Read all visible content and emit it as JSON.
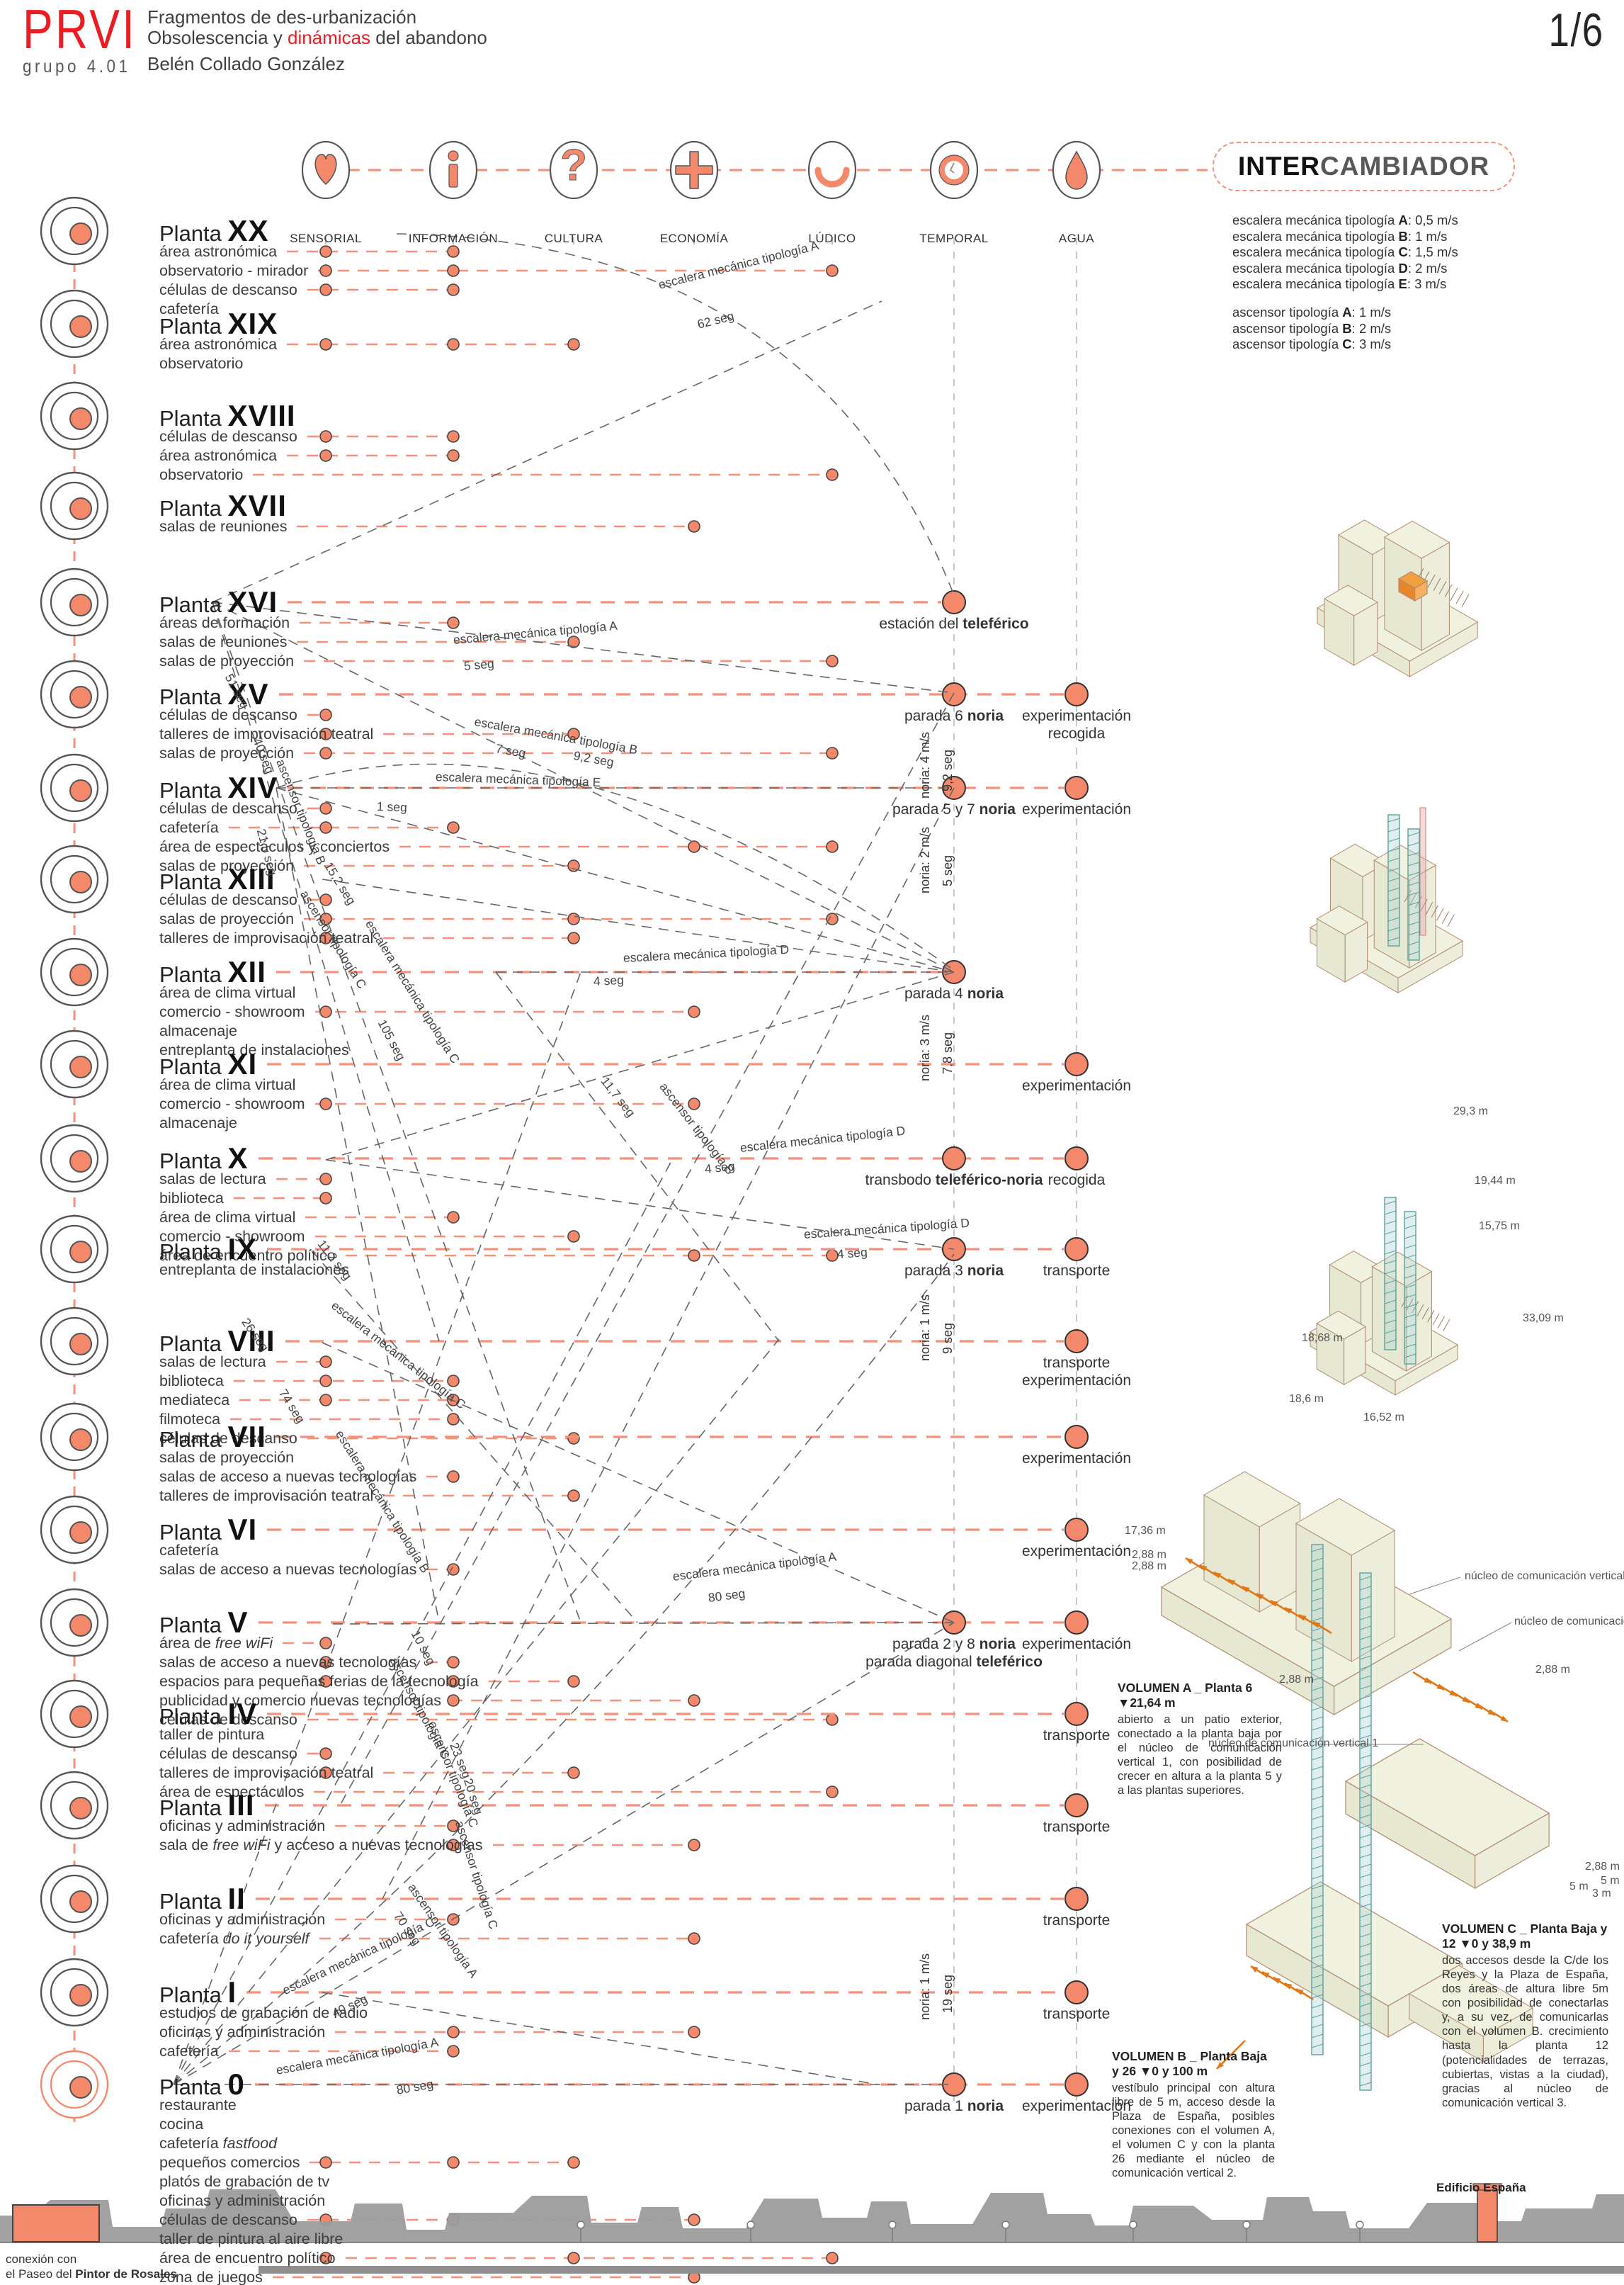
{
  "header": {
    "logo": "PRVI",
    "group": "grupo 4.01",
    "title1": "Fragmentos de des-urbanización",
    "title2_a": "Obsolescencia y ",
    "title2_b": "dinámicas",
    "title2_c": " del abandono",
    "author": "Belén Collado González",
    "page": "1/6"
  },
  "colors": {
    "accent": "#f4886a",
    "accent_line": "#f5917a",
    "red": "#ec1c24",
    "line_gray": "#666666",
    "col_gray": "#c2c2c2",
    "skyline": "#9c9c9c",
    "teal": "#5fa0a0",
    "orange": "#e07818",
    "axon_top": "#f0f1de",
    "axon_l": "#e7e8d2",
    "axon_r": "#ecedda",
    "axon_stroke": "#b08a6e"
  },
  "categories": [
    {
      "label": "SENSORIAL",
      "icon": "heart-icon"
    },
    {
      "label": "INFORMACIÓN",
      "icon": "info-icon"
    },
    {
      "label": "CULTURA",
      "icon": "question-icon"
    },
    {
      "label": "ECONOMÍA",
      "icon": "plus-icon"
    },
    {
      "label": "LÚDICO",
      "icon": "smile-icon"
    },
    {
      "label": "TEMPORAL",
      "icon": "clock-icon"
    },
    {
      "label": "AGUA",
      "icon": "drop-icon"
    }
  ],
  "intercambiador": {
    "title_bold": "INTER",
    "title_rest": "CAMBIADOR",
    "escaleras": [
      "escalera mecánica tipología **A**: 0,5 m/s",
      "escalera mecánica tipología **B**: 1 m/s",
      "escalera mecánica tipología **C**: 1,5 m/s",
      "escalera mecánica tipología **D**: 2 m/s",
      "escalera mecánica tipología **E**: 3 m/s"
    ],
    "ascensores": [
      "ascensor tipología **A**: 1 m/s",
      "ascensor tipología **B**: 2 m/s",
      "ascensor tipología **C**: 3 m/s"
    ]
  },
  "floors": [
    {
      "num": "XX",
      "functions": [
        "área astronómica",
        "observatorio - mirador",
        "células de descanso",
        "cafetería"
      ],
      "dots": [
        [
          0,
          [
            0,
            1,
            2
          ]
        ],
        [
          1,
          [
            0,
            1,
            2
          ]
        ],
        [
          4,
          [
            1
          ]
        ]
      ],
      "right": []
    },
    {
      "num": "XIX",
      "functions": [
        "área astronómica",
        "observatorio"
      ],
      "dots": [
        [
          0,
          [
            0
          ]
        ],
        [
          1,
          [
            0
          ]
        ],
        [
          2,
          [
            0
          ]
        ]
      ],
      "right": []
    },
    {
      "num": "XVIII",
      "functions": [
        "células de descanso",
        "área astronómica",
        "observatorio"
      ],
      "dots": [
        [
          0,
          [
            0,
            1
          ]
        ],
        [
          1,
          [
            0,
            1
          ]
        ],
        [
          4,
          [
            2
          ]
        ]
      ],
      "right": []
    },
    {
      "num": "XVII",
      "functions": [
        "salas de reuniones"
      ],
      "dots": [
        [
          3,
          [
            0
          ]
        ]
      ],
      "right": []
    },
    {
      "num": "XVI",
      "functions": [
        "áreas de formación",
        "salas de reuniones",
        "salas de proyección"
      ],
      "dots": [
        [
          1,
          [
            0
          ]
        ],
        [
          2,
          [
            1
          ]
        ],
        [
          4,
          [
            2
          ]
        ]
      ],
      "right": [
        {
          "col": 5,
          "lines": [
            "estación del **teleférico**"
          ]
        }
      ]
    },
    {
      "num": "XV",
      "functions": [
        "células de descanso",
        "talleres de improvisación teatral",
        "salas de proyección"
      ],
      "dots": [
        [
          0,
          [
            0,
            1,
            2
          ]
        ],
        [
          2,
          [
            1
          ]
        ],
        [
          4,
          [
            2
          ]
        ]
      ],
      "right": [
        {
          "col": 5,
          "lines": [
            "parada 6 **noria**"
          ]
        },
        {
          "col": 6,
          "lines": [
            "experimentación",
            "recogida"
          ]
        }
      ]
    },
    {
      "num": "XIV",
      "functions": [
        "células de descanso",
        "cafetería",
        "área de espectáculos y conciertos",
        "salas de proyección"
      ],
      "dots": [
        [
          0,
          [
            0,
            1
          ]
        ],
        [
          1,
          [
            1
          ]
        ],
        [
          2,
          [
            3
          ]
        ],
        [
          3,
          [
            2
          ]
        ],
        [
          4,
          [
            2
          ]
        ]
      ],
      "right": [
        {
          "col": 5,
          "lines": [
            "parada 5 y 7 **noria**"
          ]
        },
        {
          "col": 6,
          "lines": [
            "experimentación"
          ]
        }
      ]
    },
    {
      "num": "XIII",
      "functions": [
        "células de descanso",
        "salas de proyección",
        "talleres de improvisación teatral"
      ],
      "dots": [
        [
          0,
          [
            0,
            1,
            2
          ]
        ],
        [
          2,
          [
            1,
            2
          ]
        ],
        [
          4,
          [
            1
          ]
        ]
      ],
      "right": []
    },
    {
      "num": "XII",
      "functions": [
        "área de clima virtual",
        "comercio - showroom",
        "almacenaje",
        "entreplanta de instalaciones"
      ],
      "dots": [
        [
          0,
          [
            1
          ]
        ],
        [
          3,
          [
            1
          ]
        ]
      ],
      "right": [
        {
          "col": 5,
          "lines": [
            "parada 4 **noria**"
          ]
        }
      ]
    },
    {
      "num": "XI",
      "functions": [
        "área de clima virtual",
        "comercio - showroom",
        "almacenaje"
      ],
      "dots": [
        [
          0,
          [
            1
          ]
        ],
        [
          3,
          [
            1
          ]
        ]
      ],
      "right": [
        {
          "col": 6,
          "lines": [
            "experimentación"
          ]
        }
      ]
    },
    {
      "num": "X",
      "functions": [
        "salas de lectura",
        "biblioteca",
        "área de clima virtual",
        "comercio - showroom",
        "área de encuentro político"
      ],
      "dots": [
        [
          0,
          [
            0,
            1
          ]
        ],
        [
          1,
          [
            2
          ]
        ],
        [
          2,
          [
            3
          ]
        ],
        [
          3,
          [
            4
          ]
        ],
        [
          4,
          [
            4
          ]
        ]
      ],
      "right": [
        {
          "col": 5,
          "lines": [
            "transbodo **teleférico-noria**"
          ]
        },
        {
          "col": 6,
          "lines": [
            "recogida"
          ]
        }
      ]
    },
    {
      "num": "IX",
      "functions": [
        "entreplanta de instalaciones"
      ],
      "dots": [],
      "right": [
        {
          "col": 5,
          "lines": [
            "parada 3 **noria**"
          ]
        },
        {
          "col": 6,
          "lines": [
            "transporte"
          ]
        }
      ]
    },
    {
      "num": "VIII",
      "functions": [
        "salas de lectura",
        "biblioteca",
        "mediateca",
        "filmoteca",
        "células de descanso"
      ],
      "dots": [
        [
          0,
          [
            0,
            1,
            2
          ]
        ],
        [
          1,
          [
            1,
            2,
            3
          ]
        ],
        [
          2,
          [
            4
          ]
        ]
      ],
      "right": [
        {
          "col": 6,
          "lines": [
            "transporte",
            "experimentación"
          ]
        }
      ]
    },
    {
      "num": "VII",
      "functions": [
        "salas de proyección",
        "salas de acceso a nuevas tecnologías",
        "talleres de improvisación teatral"
      ],
      "dots": [
        [
          1,
          [
            1
          ]
        ],
        [
          2,
          [
            2
          ]
        ]
      ],
      "right": [
        {
          "col": 6,
          "lines": [
            "experimentación"
          ]
        }
      ]
    },
    {
      "num": "VI",
      "functions": [
        "cafetería",
        "salas de acceso a nuevas tecnologías"
      ],
      "dots": [
        [
          1,
          [
            1
          ]
        ]
      ],
      "right": [
        {
          "col": 6,
          "lines": [
            "experimentación"
          ]
        }
      ]
    },
    {
      "num": "V",
      "functions": [
        "área de *free wiFi*",
        "salas de acceso a nuevas tecnologías",
        "espacios para pequeñas ferias de la tecnología",
        "publicidad y comercio nuevas tecnologías",
        "células de descanso"
      ],
      "dots": [
        [
          0,
          [
            0,
            1,
            2
          ]
        ],
        [
          1,
          [
            1,
            2,
            3
          ]
        ],
        [
          2,
          [
            2
          ]
        ],
        [
          3,
          [
            3
          ]
        ],
        [
          4,
          [
            4
          ]
        ]
      ],
      "right": [
        {
          "col": 5,
          "lines": [
            "parada 2 y 8 **noria**",
            "parada diagonal **teleférico**"
          ]
        },
        {
          "col": 6,
          "lines": [
            "experimentación"
          ]
        }
      ]
    },
    {
      "num": "IV",
      "functions": [
        "taller de pintura",
        "células de descanso",
        "talleres de improvisación teatral",
        "área de espectáculos"
      ],
      "dots": [
        [
          0,
          [
            1,
            2
          ]
        ],
        [
          2,
          [
            2
          ]
        ],
        [
          4,
          [
            3
          ]
        ]
      ],
      "right": [
        {
          "col": 6,
          "lines": [
            "transporte"
          ]
        }
      ]
    },
    {
      "num": "III",
      "functions": [
        "oficinas y administración",
        "sala de *free wiFi* y acceso a nuevas tecnologías"
      ],
      "dots": [
        [
          1,
          [
            0,
            1
          ]
        ],
        [
          3,
          [
            1
          ]
        ]
      ],
      "right": [
        {
          "col": 6,
          "lines": [
            "transporte"
          ]
        }
      ]
    },
    {
      "num": "II",
      "functions": [
        "oficinas y administración",
        "cafetería *do it yourself*"
      ],
      "dots": [
        [
          1,
          [
            0
          ]
        ],
        [
          3,
          [
            1
          ]
        ]
      ],
      "right": [
        {
          "col": 6,
          "lines": [
            "transporte"
          ]
        }
      ]
    },
    {
      "num": "I",
      "functions": [
        "estudios de grabación de radio",
        "oficinas y administración",
        "cafetería"
      ],
      "dots": [
        [
          1,
          [
            1,
            2
          ]
        ],
        [
          3,
          [
            1
          ]
        ]
      ],
      "right": [
        {
          "col": 6,
          "lines": [
            "transporte"
          ]
        }
      ]
    },
    {
      "num": "0",
      "functions": [
        "restaurante",
        "cocina",
        "cafetería *fastfood*",
        "pequeños comercios",
        "platós de grabación de tv",
        "oficinas y administración",
        "células de descanso",
        "taller de pintura al aire libre",
        "área de encuentro político",
        "zona de juegos"
      ],
      "dots": [
        [
          0,
          [
            3,
            6,
            8
          ]
        ],
        [
          1,
          [
            3,
            6
          ]
        ],
        [
          2,
          [
            3,
            8
          ]
        ],
        [
          3,
          [
            6,
            9
          ]
        ],
        [
          4,
          [
            8
          ]
        ]
      ],
      "right": [
        {
          "col": 5,
          "lines": [
            "parada 1 **noria**"
          ]
        },
        {
          "col": 6,
          "lines": [
            "experimentación"
          ]
        }
      ]
    }
  ],
  "noria_labels": [
    {
      "speed": "noria: 4 m/s",
      "time": "9,2 seg"
    },
    {
      "speed": "noria: 2 m/s",
      "time": "5 seg"
    },
    {
      "speed": "noria: 3 m/s",
      "time": "7,8 seg"
    },
    {
      "speed": "noria: 1 m/s",
      "time": "9 seg"
    },
    {
      "speed": "noria: 1 m/s",
      "time": "19 seg"
    }
  ],
  "connection_labels": [
    "escalera mecánica tipología A",
    "62 seg",
    "escalera mecánica tipología A",
    "5 seg",
    "51 seg",
    "escalera mecánica tipología B",
    "7 seg",
    "9,2 seg",
    "ascensor tipología B",
    "40 seg",
    "escalera mecánica tipología E",
    "1 seg",
    "21,5 seg",
    "ascensor tipología C",
    "15,2 seg",
    "escalera mecánica tipología C",
    "105 seg",
    "escalera mecánica tipología D",
    "4 seg",
    "ascensor tipología B",
    "11,7 seg",
    "escalera mecánica tipología D",
    "4 seg",
    "11,2 seg",
    "escalera mecánica tipología C",
    "26 seg",
    "74 seg",
    "escalera mecánica tipología B",
    "escalera mecánica tipología D",
    "4 seg",
    "escalera mecánica tipología A",
    "80 seg",
    "ascensor tipología C",
    "10 seg",
    "ascensor tipología C",
    "23 seg",
    "ascensor tipología C",
    "20 seg",
    "ascensor tipología A",
    "70 seg",
    "escalera mecánica tipología C",
    "40 seg",
    "escalera mecánica tipología A",
    "80 seg"
  ],
  "axon": {
    "dims_c": [
      "29,3 m",
      "19,44 m",
      "15,75 m",
      "33,09 m",
      "18,68 m",
      "18,6 m",
      "16,52 m"
    ],
    "labels_d": [
      "17,36 m",
      "2,88 m",
      "2,88 m",
      "núcleo de comunicación vertical 2",
      "núcleo de comunicación vertical 3",
      "2,88 m",
      "núcleo de comunicación vertical 1",
      "2,88 m",
      "2,88 m",
      "5 m",
      "5 m",
      "3 m"
    ],
    "volumen_a": {
      "title": "VOLUMEN A _ Planta 6 ▼21,64 m",
      "body": "abierto a un patio exterior, conectado a la planta baja por el núcleo de comunicación vertical 1, con posibilidad de crecer en altura a la planta 5 y a las plantas superiores."
    },
    "volumen_b": {
      "title": "VOLUMEN B _ Planta Baja y 26 ▼0 y 100 m",
      "body": "vestíbulo principal con altura libre de 5 m, acceso desde la Plaza de España, posibles conexiones con el volumen A, el volumen C y con la planta 26 mediante el núcleo de comunicación vertical 2."
    },
    "volumen_c": {
      "title": "VOLUMEN C _ Planta Baja y 12 ▼0 y 38,9 m",
      "body": "dos accesos desde la C/de los Reyes y la Plaza de España, dos áreas de altura libre 5m con posibilidad de conectarlas y, a su vez, de comunicarlas con el volumen B. crecimiento hasta la planta 12 (potencialidades de terrazas, cubiertas, vistas a la ciudad), gracias al núcleo de comunicación vertical 3."
    }
  },
  "bottom": {
    "caption1": "conexión con",
    "caption2_a": "el Paseo del ",
    "caption2_b": "Pintor de Rosales",
    "edificio": "Edificio España"
  }
}
